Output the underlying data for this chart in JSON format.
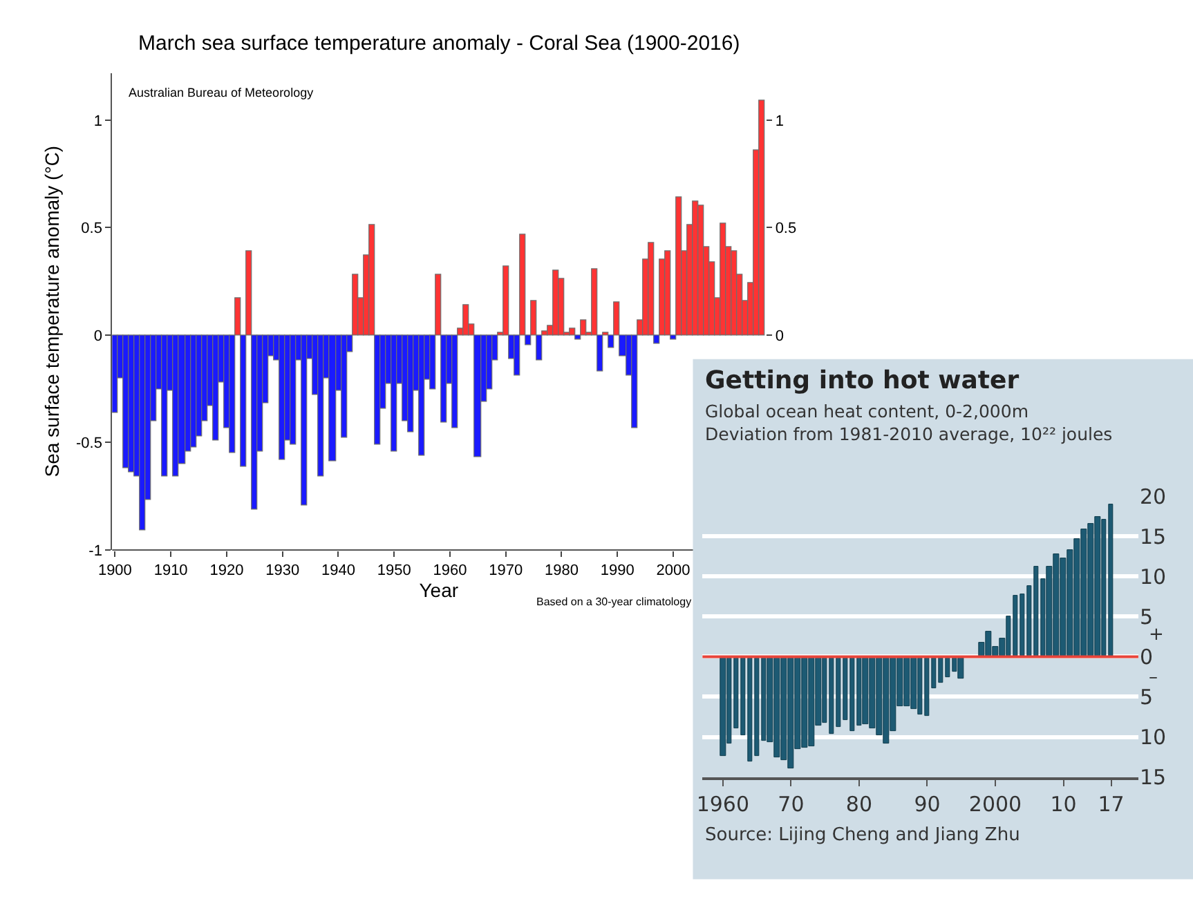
{
  "chart_data": [
    {
      "type": "bar",
      "title": "March sea surface temperature anomaly - Coral Sea (1900-2016)",
      "xlabel": "Year",
      "ylabel": "Sea surface temperature anomaly (°C)",
      "x": [
        1900,
        1901,
        1902,
        1903,
        1904,
        1905,
        1906,
        1907,
        1908,
        1909,
        1910,
        1911,
        1912,
        1913,
        1914,
        1915,
        1916,
        1917,
        1918,
        1919,
        1920,
        1921,
        1922,
        1923,
        1924,
        1925,
        1926,
        1927,
        1928,
        1929,
        1930,
        1931,
        1932,
        1933,
        1934,
        1935,
        1936,
        1937,
        1938,
        1939,
        1940,
        1941,
        1942,
        1943,
        1944,
        1945,
        1946,
        1947,
        1948,
        1949,
        1950,
        1951,
        1952,
        1953,
        1954,
        1955,
        1956,
        1957,
        1958,
        1959,
        1960,
        1961,
        1962,
        1963,
        1964,
        1965,
        1966,
        1967,
        1968,
        1969,
        1970,
        1971,
        1972,
        1973,
        1974,
        1975,
        1976,
        1977,
        1978,
        1979,
        1980,
        1981,
        1982,
        1983,
        1984,
        1985,
        1986,
        1987,
        1988,
        1989,
        1990,
        1991,
        1992,
        1993,
        1994,
        1995,
        1996,
        1997,
        1998,
        1999,
        2000,
        2001,
        2002,
        2003,
        2004,
        2005,
        2006,
        2007,
        2008,
        2009,
        2010,
        2011,
        2012,
        2013,
        2014,
        2015,
        2016
      ],
      "values": [
        -0.36,
        -0.2,
        -0.62,
        -0.64,
        -0.66,
        -0.91,
        -0.77,
        -0.4,
        -0.25,
        -0.66,
        -0.26,
        -0.66,
        -0.6,
        -0.54,
        -0.52,
        -0.47,
        -0.4,
        -0.33,
        -0.49,
        -0.22,
        -0.43,
        -0.55,
        0.17,
        -0.61,
        0.39,
        -0.81,
        -0.54,
        -0.32,
        -0.1,
        -0.12,
        -0.58,
        -0.49,
        -0.51,
        -0.12,
        -0.79,
        -0.11,
        -0.28,
        -0.66,
        -0.2,
        -0.59,
        -0.26,
        -0.48,
        -0.08,
        0.28,
        0.17,
        0.37,
        0.51,
        -0.51,
        -0.34,
        -0.23,
        -0.54,
        -0.23,
        -0.4,
        -0.45,
        -0.26,
        -0.56,
        -0.21,
        -0.25,
        0.28,
        -0.41,
        -0.23,
        -0.43,
        0.03,
        0.14,
        0.05,
        -0.57,
        -0.31,
        -0.25,
        -0.12,
        0.01,
        0.32,
        -0.11,
        -0.19,
        0.47,
        -0.05,
        0.16,
        -0.12,
        0.02,
        0.04,
        0.3,
        0.26,
        0.01,
        0.03,
        -0.02,
        0.07,
        0.01,
        0.31,
        -0.17,
        0.01,
        -0.06,
        0.15,
        -0.1,
        -0.19,
        -0.43,
        0.07,
        0.35,
        0.43,
        -0.04,
        0.35,
        0.39,
        -0.02,
        0.64,
        0.39,
        0.51,
        0.62,
        0.6,
        0.41,
        0.34,
        0.17,
        0.52,
        0.41,
        0.39,
        0.28,
        0.16,
        0.24,
        0.86,
        1.09
      ],
      "colors": [
        "#1a1aff",
        "#1a1aff",
        "#1a1aff",
        "#1a1aff",
        "#1a1aff",
        "#1a1aff",
        "#1a1aff",
        "#1a1aff",
        "#1a1aff",
        "#1a1aff",
        "#1a1aff",
        "#1a1aff",
        "#1a1aff",
        "#1a1aff",
        "#1a1aff",
        "#1a1aff",
        "#1a1aff",
        "#1a1aff",
        "#1a1aff",
        "#1a1aff",
        "#1a1aff",
        "#1a1aff",
        "#ff3333",
        "#1a1aff",
        "#ff3333",
        "#1a1aff",
        "#1a1aff",
        "#1a1aff",
        "#1a1aff",
        "#1a1aff",
        "#1a1aff",
        "#1a1aff",
        "#1a1aff",
        "#1a1aff",
        "#1a1aff",
        "#1a1aff",
        "#1a1aff",
        "#1a1aff",
        "#1a1aff",
        "#1a1aff",
        "#1a1aff",
        "#1a1aff",
        "#1a1aff",
        "#ff3333",
        "#ff3333",
        "#ff3333",
        "#ff3333",
        "#1a1aff",
        "#1a1aff",
        "#1a1aff",
        "#1a1aff",
        "#1a1aff",
        "#1a1aff",
        "#1a1aff",
        "#1a1aff",
        "#1a1aff",
        "#1a1aff",
        "#1a1aff",
        "#ff3333",
        "#1a1aff",
        "#1a1aff",
        "#1a1aff",
        "#ff3333",
        "#ff3333",
        "#ff3333",
        "#1a1aff",
        "#1a1aff",
        "#1a1aff",
        "#1a1aff",
        "#ff3333",
        "#ff3333",
        "#1a1aff",
        "#1a1aff",
        "#ff3333",
        "#1a1aff",
        "#ff3333",
        "#1a1aff",
        "#ff3333",
        "#ff3333",
        "#ff3333",
        "#ff3333",
        "#ff3333",
        "#ff3333",
        "#1a1aff",
        "#ff3333",
        "#ff3333",
        "#ff3333",
        "#1a1aff",
        "#ff3333",
        "#1a1aff",
        "#ff3333",
        "#1a1aff",
        "#1a1aff",
        "#1a1aff",
        "#ff3333",
        "#ff3333",
        "#ff3333",
        "#1a1aff",
        "#ff3333",
        "#ff3333",
        "#1a1aff",
        "#ff3333",
        "#ff3333",
        "#ff3333",
        "#ff3333",
        "#ff3333",
        "#ff3333",
        "#ff3333",
        "#ff3333",
        "#ff3333",
        "#ff3333",
        "#ff3333",
        "#ff3333",
        "#ff3333",
        "#ff3333",
        "#ff3333",
        "#ff3333"
      ],
      "xlim": [
        1899.5,
        2016.5
      ],
      "xticks": [
        1900,
        1910,
        1920,
        1930,
        1940,
        1950,
        1960,
        1970,
        1980,
        1990,
        2000
      ],
      "ylim": [
        -1,
        1.22
      ],
      "yticks": [
        -1,
        -0.5,
        0,
        0.5,
        1
      ],
      "y2lim": [
        -1,
        1.22
      ],
      "y2ticks": [
        0,
        0.5,
        1
      ],
      "grid": false,
      "annotations": [
        "Australian Bureau of Meteorology",
        "Based on a 30-year climatology"
      ]
    },
    {
      "type": "bar",
      "title": "Getting into hot water",
      "subtitle": "Global ocean heat content, 0-2,000m\nDeviation from 1981-2010 average, 10²² joules",
      "x": [
        1960,
        1961,
        1962,
        1963,
        1964,
        1965,
        1966,
        1967,
        1968,
        1969,
        1970,
        1971,
        1972,
        1973,
        1974,
        1975,
        1976,
        1977,
        1978,
        1979,
        1980,
        1981,
        1982,
        1983,
        1984,
        1985,
        1986,
        1987,
        1988,
        1989,
        1990,
        1991,
        1992,
        1993,
        1994,
        1995,
        1996,
        1997,
        1998,
        1999,
        2000,
        2001,
        2002,
        2003,
        2004,
        2005,
        2006,
        2007,
        2008,
        2009,
        2010,
        2011,
        2012,
        2013,
        2014,
        2015,
        2016,
        2017
      ],
      "values": [
        -12.3,
        -10.8,
        -8.9,
        -9.8,
        -13.1,
        -12.4,
        -10.5,
        -10.7,
        -12.6,
        -12.9,
        -13.9,
        -11.5,
        -11.3,
        -11.2,
        -8.6,
        -8.2,
        -9.7,
        -8.8,
        -7.9,
        -9.2,
        -8.6,
        -8.4,
        -8.9,
        -9.8,
        -10.9,
        -9.2,
        -6.1,
        -6.1,
        -6.6,
        -7.2,
        -7.4,
        -4.0,
        -3.3,
        -2.6,
        -1.9,
        -2.8,
        null,
        null,
        1.8,
        3.2,
        1.3,
        2.3,
        5.0,
        7.6,
        7.8,
        8.8,
        11.2,
        9.6,
        11.2,
        12.7,
        12.2,
        13.3,
        14.6,
        15.9,
        16.6,
        17.5,
        17.0,
        18.9
      ],
      "color": "#1d5a73",
      "xlim": [
        1957,
        2021
      ],
      "xticks": [
        1960,
        {
          "value": 1970,
          "label": "70"
        },
        {
          "value": 1980,
          "label": "80"
        },
        {
          "value": 1990,
          "label": "90"
        },
        2000,
        {
          "value": 2010,
          "label": "10"
        },
        {
          "value": 2017,
          "label": "17"
        }
      ],
      "ylim": [
        -15,
        20
      ],
      "yticks": [
        {
          "value": -15,
          "label": "15"
        },
        {
          "value": -10,
          "label": "10"
        },
        {
          "value": -5,
          "label": "5"
        },
        0,
        5,
        10,
        15,
        20
      ],
      "grid": "y",
      "ref_lines": [
        {
          "axis": "y",
          "value": 0,
          "color": "#e8443a"
        }
      ],
      "annotations": [
        "Source: Lijing Cheng and Jiang Zhu",
        "+",
        "–"
      ]
    }
  ]
}
